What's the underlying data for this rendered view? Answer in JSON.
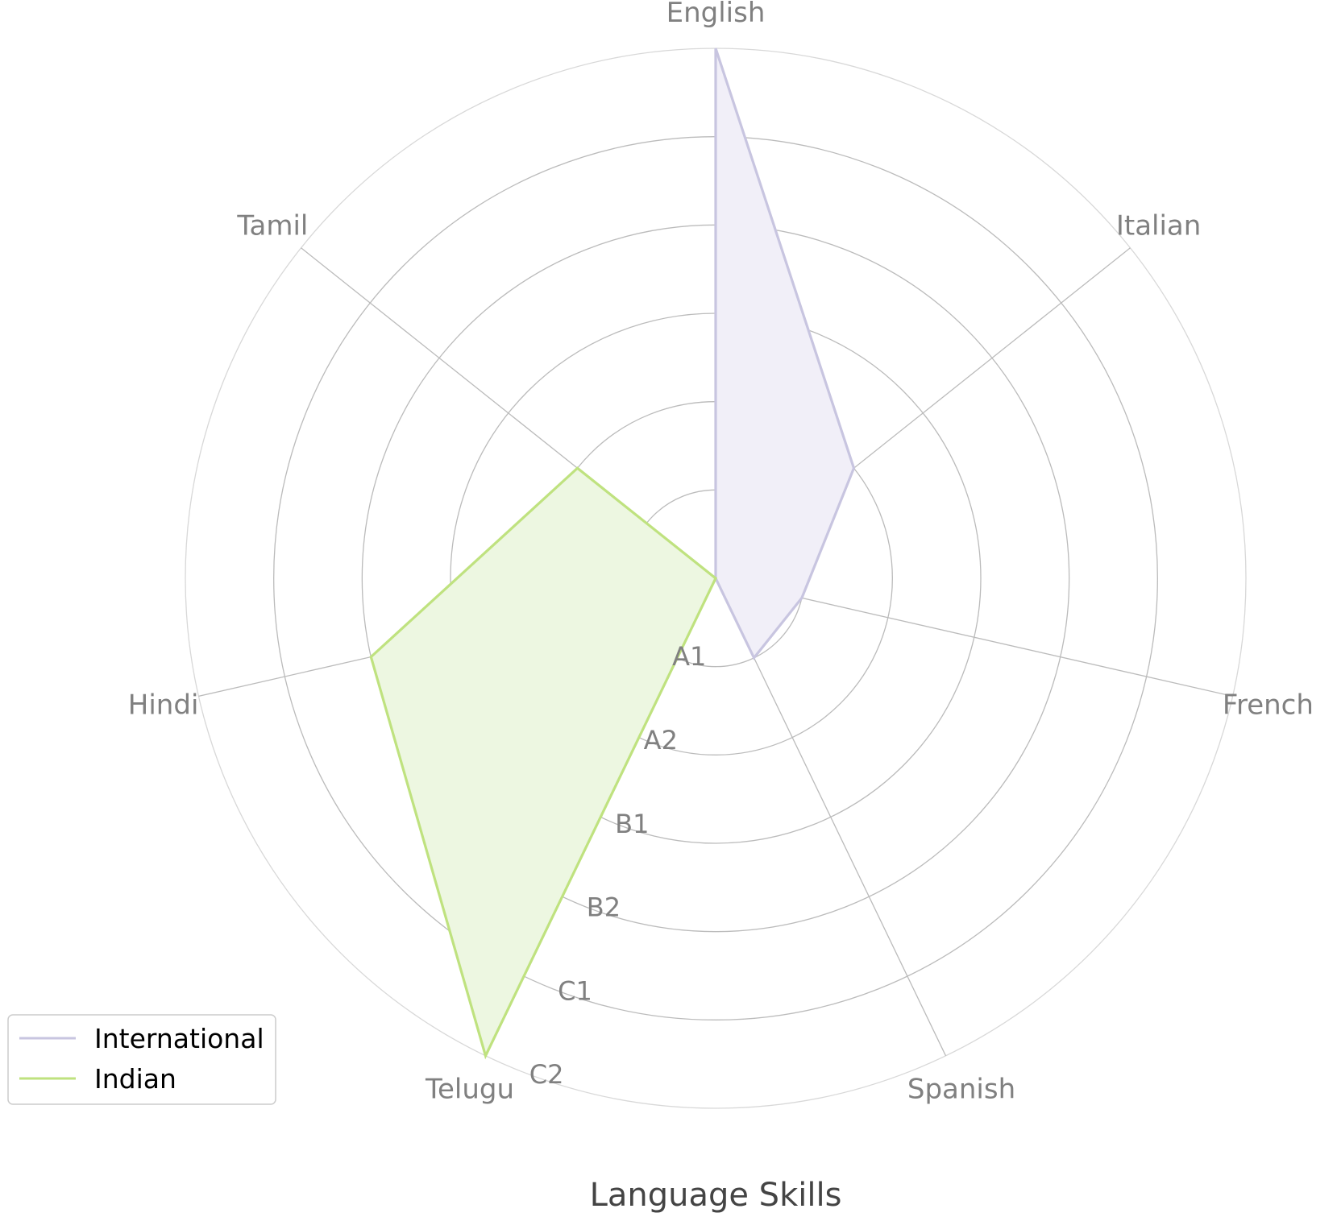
{
  "chart_data": {
    "type": "radar",
    "title": "Language Skills",
    "axes": [
      "English",
      "Italian",
      "French",
      "Spanish",
      "Telugu",
      "Hindi",
      "Tamil"
    ],
    "levels": [
      "A1",
      "A2",
      "B1",
      "B2",
      "C1",
      "C2"
    ],
    "rmax": 6,
    "grid": true,
    "legend": {
      "placement": "bottom-left",
      "entries": [
        "International",
        "Indian"
      ]
    },
    "series": [
      {
        "name": "International",
        "color": "#c8c5e0",
        "fill": "#f1eff8",
        "values": [
          6,
          2,
          1,
          1,
          0,
          0,
          0
        ]
      },
      {
        "name": "Indian",
        "color": "#bfe27f",
        "fill": "#edf7e1",
        "values": [
          0,
          0,
          0,
          0,
          6,
          4,
          2
        ]
      }
    ]
  }
}
